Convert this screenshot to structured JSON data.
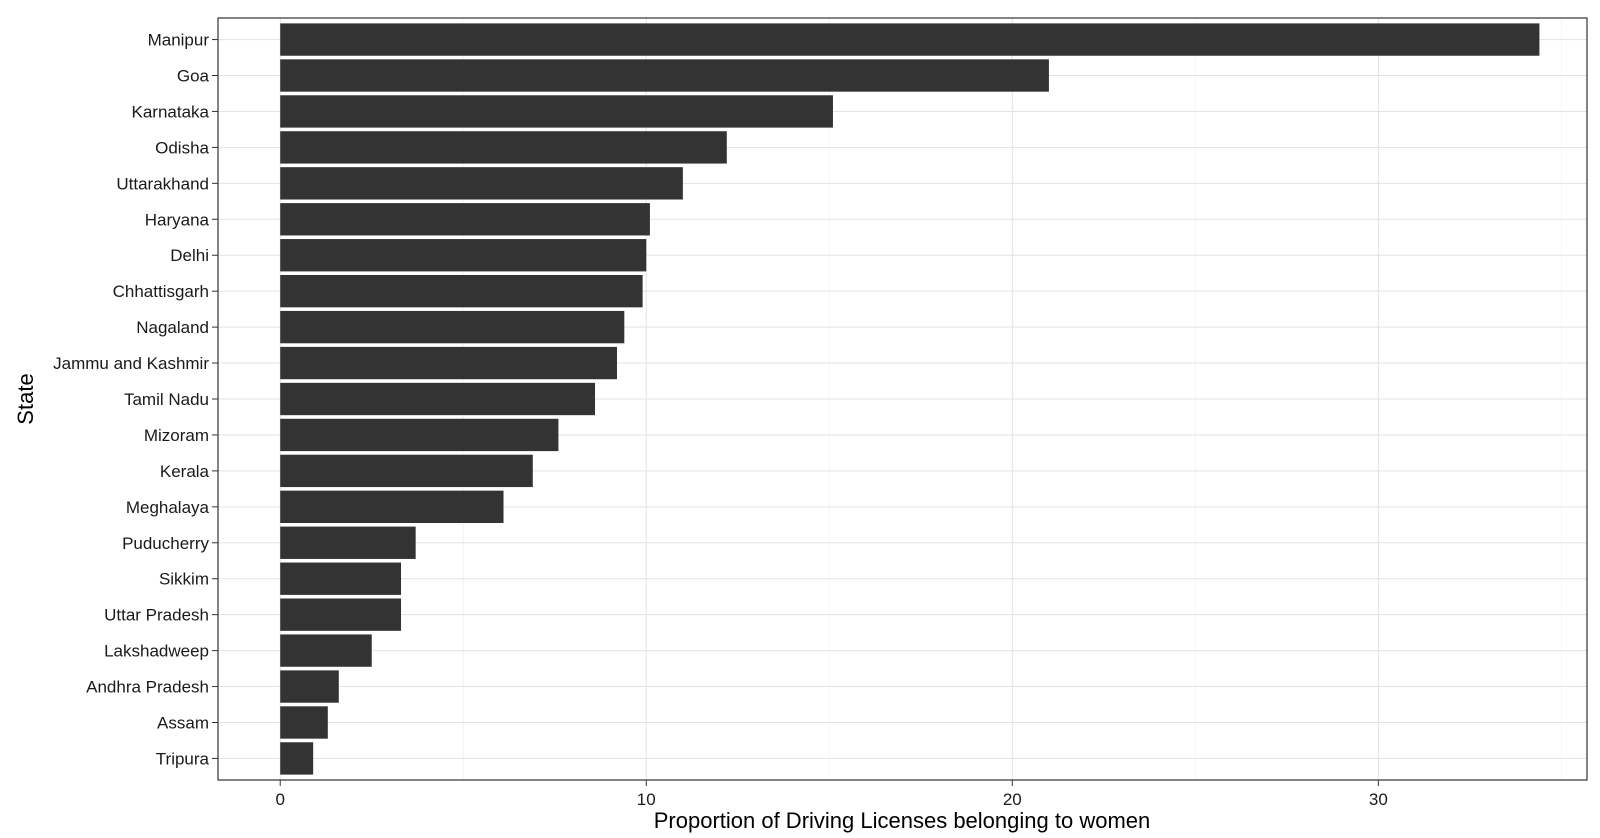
{
  "chart_data": {
    "type": "bar",
    "orientation": "horizontal",
    "title": "",
    "xlabel": "Proportion of Driving Licenses belonging to women",
    "ylabel": "State",
    "xlim": [
      -1.7,
      35.7
    ],
    "x_ticks": [
      0,
      10,
      20,
      30
    ],
    "grid": true,
    "legend": "none",
    "bar_color": "#333333",
    "categories": [
      "Manipur",
      "Goa",
      "Karnataka",
      "Odisha",
      "Uttarakhand",
      "Haryana",
      "Delhi",
      "Chhattisgarh",
      "Nagaland",
      "Jammu and Kashmir",
      "Tamil Nadu",
      "Mizoram",
      "Kerala",
      "Meghalaya",
      "Puducherry",
      "Sikkim",
      "Uttar Pradesh",
      "Lakshadweep",
      "Andhra Pradesh",
      "Assam",
      "Tripura"
    ],
    "values": [
      34.4,
      21.0,
      15.1,
      12.2,
      11.0,
      10.1,
      10.0,
      9.9,
      9.4,
      9.2,
      8.6,
      7.6,
      6.9,
      6.1,
      3.7,
      3.3,
      3.3,
      2.5,
      1.6,
      1.3,
      0.9
    ]
  }
}
